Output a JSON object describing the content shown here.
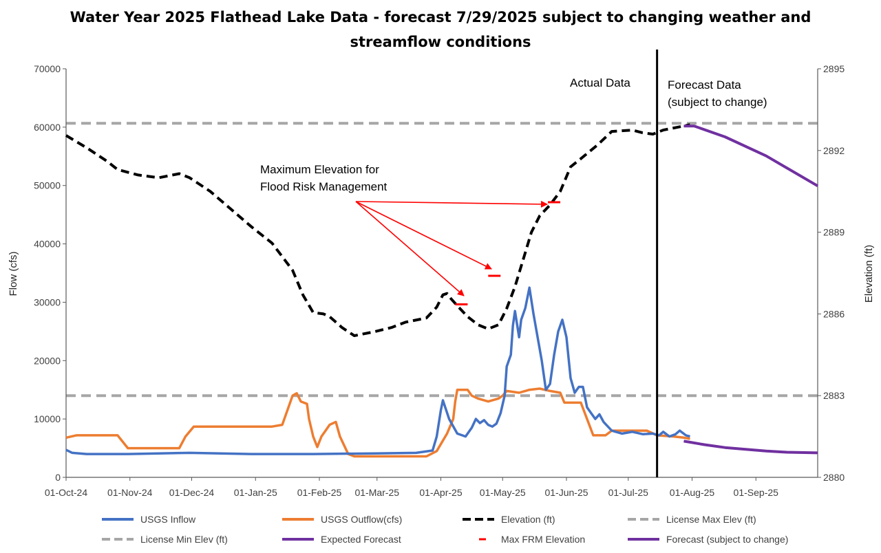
{
  "chart_data": {
    "type": "line",
    "title_line1": "Water Year 2025 Flathead Lake Data - forecast 7/29/2025 subject to changing weather and",
    "title_line2": "streamflow conditions",
    "ylabel": "Flow (cfs)",
    "y2label": "Elevation (ft)",
    "ylim": [
      0,
      70000
    ],
    "y2lim": [
      2880,
      2895
    ],
    "yticks": [
      "0",
      "10000",
      "20000",
      "30000",
      "40000",
      "50000",
      "60000",
      "70000"
    ],
    "y2ticks": [
      "2880",
      "2883",
      "2886",
      "2889",
      "2892",
      "2895"
    ],
    "xlim": [
      0,
      365
    ],
    "xticks": [
      {
        "day": 0,
        "label": "01-Oct-24"
      },
      {
        "day": 31,
        "label": "01-Nov-24"
      },
      {
        "day": 61,
        "label": "01-Dec-24"
      },
      {
        "day": 92,
        "label": "01-Jan-25"
      },
      {
        "day": 123,
        "label": "01-Feb-25"
      },
      {
        "day": 151,
        "label": "01-Mar-25"
      },
      {
        "day": 182,
        "label": "01-Apr-25"
      },
      {
        "day": 212,
        "label": "01-May-25"
      },
      {
        "day": 243,
        "label": "01-Jun-25"
      },
      {
        "day": 273,
        "label": "01-Jul-25"
      },
      {
        "day": 304,
        "label": "01-Aug-25"
      },
      {
        "day": 335,
        "label": "01-Sep-25"
      }
    ],
    "divider_day": 287,
    "annotations": {
      "actual": "Actual Data",
      "forecast_line1": "Forecast Data",
      "forecast_line2": "(subject to change)",
      "frm_line1": "Maximum Elevation for",
      "frm_line2": "Flood Risk Management"
    },
    "colors": {
      "inflow": "#4472C4",
      "outflow": "#ED7D31",
      "elevation": "#000000",
      "license_max": "#A6A6A6",
      "license_min": "#A6A6A6",
      "forecast": "#7030A0",
      "frm": "#FF0000",
      "arrow": "#FF0000"
    },
    "license_max_elev": 2893,
    "license_min_elev": 2883,
    "series": [
      {
        "name": "USGS Inflow",
        "axis": "flow",
        "points": [
          [
            0,
            4700
          ],
          [
            3,
            4200
          ],
          [
            10,
            4000
          ],
          [
            30,
            4000
          ],
          [
            60,
            4200
          ],
          [
            90,
            4000
          ],
          [
            120,
            4000
          ],
          [
            150,
            4100
          ],
          [
            170,
            4200
          ],
          [
            178,
            4600
          ],
          [
            180,
            7000
          ],
          [
            182,
            11500
          ],
          [
            183,
            13200
          ],
          [
            186,
            10000
          ],
          [
            190,
            7500
          ],
          [
            194,
            7000
          ],
          [
            197,
            8500
          ],
          [
            199,
            10000
          ],
          [
            201,
            9300
          ],
          [
            203,
            9800
          ],
          [
            205,
            9000
          ],
          [
            207,
            8700
          ],
          [
            209,
            9200
          ],
          [
            211,
            11000
          ],
          [
            213,
            14000
          ],
          [
            214,
            19000
          ],
          [
            216,
            21000
          ],
          [
            217,
            26000
          ],
          [
            218,
            28500
          ],
          [
            220,
            24000
          ],
          [
            221,
            27000
          ],
          [
            223,
            29000
          ],
          [
            225,
            32500
          ],
          [
            227,
            28000
          ],
          [
            229,
            24000
          ],
          [
            231,
            20000
          ],
          [
            233,
            15000
          ],
          [
            235,
            16000
          ],
          [
            237,
            21000
          ],
          [
            239,
            25000
          ],
          [
            241,
            27000
          ],
          [
            243,
            24000
          ],
          [
            245,
            17000
          ],
          [
            247,
            14500
          ],
          [
            249,
            15500
          ],
          [
            251,
            15500
          ],
          [
            253,
            12000
          ],
          [
            255,
            11000
          ],
          [
            257,
            10000
          ],
          [
            259,
            10800
          ],
          [
            261,
            9500
          ],
          [
            265,
            8000
          ],
          [
            270,
            7500
          ],
          [
            275,
            7800
          ],
          [
            280,
            7400
          ],
          [
            285,
            7500
          ],
          [
            288,
            7200
          ],
          [
            290,
            7800
          ],
          [
            293,
            7000
          ],
          [
            296,
            7400
          ],
          [
            298,
            8000
          ],
          [
            301,
            7200
          ],
          [
            303,
            7000
          ]
        ]
      },
      {
        "name": "USGS Outflow(cfs)",
        "axis": "flow",
        "points": [
          [
            0,
            6800
          ],
          [
            5,
            7200
          ],
          [
            25,
            7200
          ],
          [
            30,
            5000
          ],
          [
            45,
            5000
          ],
          [
            55,
            5000
          ],
          [
            58,
            7000
          ],
          [
            62,
            8700
          ],
          [
            80,
            8700
          ],
          [
            100,
            8700
          ],
          [
            105,
            9000
          ],
          [
            108,
            12000
          ],
          [
            110,
            14000
          ],
          [
            112,
            14400
          ],
          [
            114,
            13000
          ],
          [
            117,
            12600
          ],
          [
            118,
            10000
          ],
          [
            120,
            7000
          ],
          [
            122,
            5200
          ],
          [
            124,
            7000
          ],
          [
            126,
            8000
          ],
          [
            128,
            9000
          ],
          [
            131,
            9500
          ],
          [
            133,
            7000
          ],
          [
            137,
            4000
          ],
          [
            140,
            3600
          ],
          [
            160,
            3600
          ],
          [
            175,
            3600
          ],
          [
            180,
            4500
          ],
          [
            185,
            7500
          ],
          [
            188,
            10000
          ],
          [
            189,
            13000
          ],
          [
            190,
            15000
          ],
          [
            195,
            15000
          ],
          [
            197,
            14000
          ],
          [
            200,
            13500
          ],
          [
            205,
            13000
          ],
          [
            210,
            13500
          ],
          [
            212,
            14000
          ],
          [
            214,
            14800
          ],
          [
            220,
            14500
          ],
          [
            225,
            15000
          ],
          [
            230,
            15200
          ],
          [
            235,
            14800
          ],
          [
            240,
            14500
          ],
          [
            242,
            12800
          ],
          [
            250,
            12800
          ],
          [
            253,
            10000
          ],
          [
            256,
            7200
          ],
          [
            262,
            7200
          ],
          [
            265,
            8000
          ],
          [
            275,
            8000
          ],
          [
            282,
            8000
          ],
          [
            287,
            7200
          ],
          [
            295,
            7000
          ],
          [
            300,
            6800
          ],
          [
            303,
            6600
          ]
        ]
      },
      {
        "name": "Elevation (ft)",
        "axis": "elev",
        "points": [
          [
            0,
            2892.55
          ],
          [
            10,
            2892.1
          ],
          [
            20,
            2891.6
          ],
          [
            25,
            2891.3
          ],
          [
            35,
            2891.1
          ],
          [
            45,
            2891.0
          ],
          [
            55,
            2891.15
          ],
          [
            60,
            2891.0
          ],
          [
            70,
            2890.5
          ],
          [
            80,
            2889.85
          ],
          [
            90,
            2889.2
          ],
          [
            100,
            2888.6
          ],
          [
            110,
            2887.6
          ],
          [
            115,
            2886.7
          ],
          [
            120,
            2886.05
          ],
          [
            125,
            2886.0
          ],
          [
            128,
            2885.9
          ],
          [
            134,
            2885.5
          ],
          [
            140,
            2885.2
          ],
          [
            150,
            2885.35
          ],
          [
            158,
            2885.5
          ],
          [
            165,
            2885.7
          ],
          [
            175,
            2885.85
          ],
          [
            180,
            2886.25
          ],
          [
            183,
            2886.7
          ],
          [
            185,
            2886.75
          ],
          [
            187,
            2886.55
          ],
          [
            190,
            2886.3
          ],
          [
            195,
            2885.9
          ],
          [
            200,
            2885.6
          ],
          [
            205,
            2885.45
          ],
          [
            210,
            2885.6
          ],
          [
            214,
            2886.2
          ],
          [
            218,
            2887.0
          ],
          [
            222,
            2888.0
          ],
          [
            226,
            2889.0
          ],
          [
            230,
            2889.6
          ],
          [
            235,
            2890.0
          ],
          [
            240,
            2890.5
          ],
          [
            245,
            2891.4
          ],
          [
            250,
            2891.7
          ],
          [
            258,
            2892.2
          ],
          [
            265,
            2892.7
          ],
          [
            275,
            2892.75
          ],
          [
            280,
            2892.65
          ],
          [
            285,
            2892.6
          ],
          [
            290,
            2892.75
          ],
          [
            300,
            2892.9
          ],
          [
            303,
            2892.95
          ]
        ]
      },
      {
        "name": "Forecast (subject to change)",
        "axis": "elev",
        "points": [
          [
            300,
            2892.9
          ],
          [
            305,
            2892.9
          ],
          [
            320,
            2892.5
          ],
          [
            340,
            2891.8
          ],
          [
            365,
            2890.7
          ]
        ]
      },
      {
        "name": "Expected Forecast",
        "axis": "flow",
        "points": [
          [
            300,
            6200
          ],
          [
            310,
            5600
          ],
          [
            320,
            5100
          ],
          [
            340,
            4500
          ],
          [
            350,
            4300
          ],
          [
            365,
            4200
          ]
        ]
      }
    ],
    "frm_markers": [
      {
        "day": 192,
        "elev": 2886.35
      },
      {
        "day": 208,
        "elev": 2887.4
      },
      {
        "day": 237,
        "elev": 2890.1
      }
    ],
    "legend": [
      {
        "label": "USGS Inflow",
        "style": "solid",
        "color": "#4472C4"
      },
      {
        "label": "USGS Outflow(cfs)",
        "style": "solid",
        "color": "#ED7D31"
      },
      {
        "label": "Elevation (ft)",
        "style": "dashed",
        "color": "#000000"
      },
      {
        "label": "License Max Elev (ft)",
        "style": "dashed",
        "color": "#A6A6A6"
      },
      {
        "label": "License Min Elev (ft)",
        "style": "dashed",
        "color": "#A6A6A6"
      },
      {
        "label": "Expected Forecast",
        "style": "solid",
        "color": "#7030A0"
      },
      {
        "label": "Max FRM Elevation",
        "style": "marker",
        "color": "#FF0000"
      },
      {
        "label": "Forecast (subject to change)",
        "style": "solid",
        "color": "#7030A0"
      }
    ]
  }
}
